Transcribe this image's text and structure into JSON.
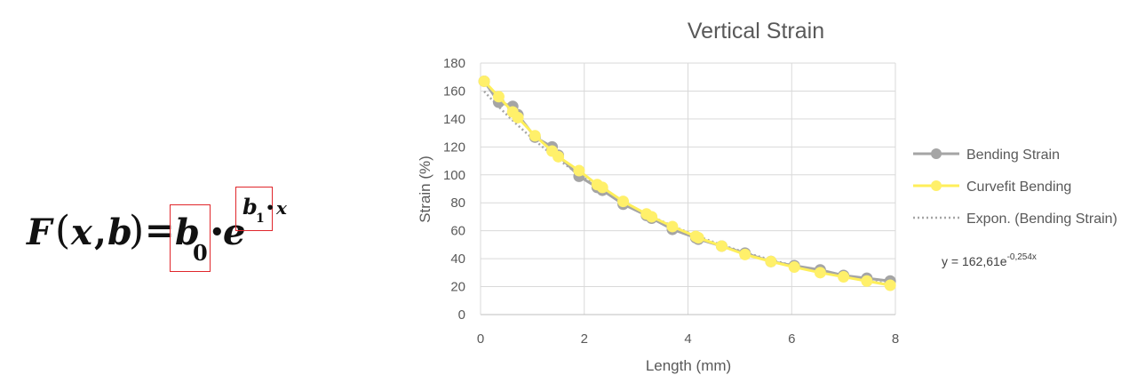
{
  "formula": {
    "F": "F",
    "open_paren": "(",
    "x": "x",
    "comma": ",",
    "b": "b",
    "close_paren": ")",
    "equals": "=",
    "b_main": "b",
    "b_sub": "0",
    "dot1": "•",
    "e": "e",
    "exp_b": "b",
    "exp_sub": "1",
    "exp_dot": "•",
    "exp_x": "x"
  },
  "colors": {
    "bending": "#a5a5a5",
    "curvefit": "#ffef5a",
    "curvefit_marker": "#fff06a",
    "trend": "#a5a5a5",
    "grid": "#d9d9d9",
    "highlight_box": "#e0262b"
  },
  "chart_data": {
    "type": "line",
    "title": "Vertical Strain",
    "xlabel": "Length (mm)",
    "ylabel": "Strain (%)",
    "xlim": [
      0,
      8
    ],
    "ylim": [
      0,
      180
    ],
    "xticks": [
      "0",
      "2",
      "4",
      "6",
      "8"
    ],
    "yticks": [
      "0",
      "20",
      "40",
      "60",
      "80",
      "100",
      "120",
      "140",
      "160",
      "180"
    ],
    "grid": true,
    "legend_position": "right",
    "series": [
      {
        "name": "Bending Strain",
        "x": [
          0.07,
          0.35,
          0.62,
          0.72,
          1.05,
          1.38,
          1.5,
          1.9,
          2.25,
          2.35,
          2.75,
          3.2,
          3.3,
          3.7,
          4.15,
          4.2,
          4.65,
          5.1,
          5.6,
          6.05,
          6.55,
          7.0,
          7.45,
          7.9
        ],
        "y": [
          167,
          152,
          149,
          143,
          127,
          120,
          114,
          99,
          91,
          89,
          79,
          71,
          69,
          61,
          55,
          54,
          49,
          44,
          38,
          35,
          32,
          28,
          26,
          24
        ]
      },
      {
        "name": "Curvefit Bending",
        "x": [
          0.07,
          0.35,
          0.62,
          0.72,
          1.05,
          1.38,
          1.5,
          1.9,
          2.25,
          2.35,
          2.75,
          3.2,
          3.3,
          3.7,
          4.15,
          4.2,
          4.65,
          5.1,
          5.6,
          6.05,
          6.55,
          7.0,
          7.45,
          7.9
        ],
        "y": [
          167,
          156,
          145,
          141,
          128,
          117,
          113,
          103,
          93,
          91,
          81,
          72,
          70,
          63,
          56,
          55,
          49,
          43,
          38,
          34,
          30,
          27,
          24,
          21
        ]
      }
    ],
    "trendline": {
      "name": "Expon. (Bending Strain)",
      "a": 162.61,
      "b": -0.254,
      "x_range": [
        0.07,
        7.9
      ]
    },
    "equation": {
      "base": "y = 162,61e",
      "exponent": "-0,254x"
    }
  }
}
